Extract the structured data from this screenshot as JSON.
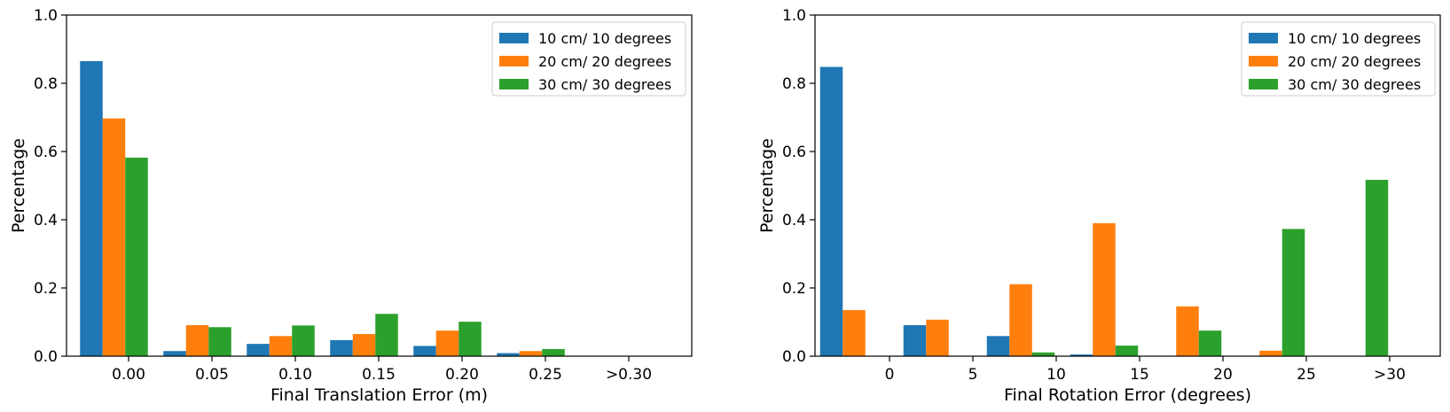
{
  "colors": {
    "series1": "#1f77b4",
    "series2": "#ff7f0e",
    "series3": "#2ca02c"
  },
  "chart_data": [
    {
      "type": "bar",
      "xlabel": "Final Translation Error (m)",
      "ylabel": "Percentage",
      "ylim": [
        0,
        1.0
      ],
      "yticks": [
        "0.0",
        "0.2",
        "0.4",
        "0.6",
        "0.8",
        "1.0"
      ],
      "categories": [
        "0.00",
        "0.05",
        "0.10",
        "0.15",
        "0.20",
        "0.25",
        ">0.30"
      ],
      "legend_position": "top-right",
      "grid": false,
      "series": [
        {
          "name": "10 cm/ 10 degrees",
          "values": [
            0.865,
            0.015,
            0.036,
            0.047,
            0.03,
            0.009,
            0.0
          ]
        },
        {
          "name": "20 cm/ 20 degrees",
          "values": [
            0.697,
            0.091,
            0.059,
            0.065,
            0.075,
            0.015,
            0.0
          ]
        },
        {
          "name": "30 cm/ 30 degrees",
          "values": [
            0.582,
            0.085,
            0.09,
            0.124,
            0.101,
            0.021,
            0.0
          ]
        }
      ]
    },
    {
      "type": "bar",
      "xlabel": "Final Rotation Error (degrees)",
      "ylabel": "Percentage",
      "ylim": [
        0,
        1.0
      ],
      "yticks": [
        "0.0",
        "0.2",
        "0.4",
        "0.6",
        "0.8",
        "1.0"
      ],
      "categories": [
        "0",
        "5",
        "10",
        "15",
        "20",
        "25",
        ">30"
      ],
      "legend_position": "top-right",
      "grid": false,
      "series": [
        {
          "name": "10 cm/ 10 degrees",
          "values": [
            0.848,
            0.091,
            0.059,
            0.005,
            0.0,
            0.0,
            0.0
          ]
        },
        {
          "name": "20 cm/ 20 degrees",
          "values": [
            0.135,
            0.107,
            0.211,
            0.39,
            0.146,
            0.016,
            0.0
          ]
        },
        {
          "name": "30 cm/ 30 degrees",
          "values": [
            0.0,
            0.0,
            0.011,
            0.031,
            0.075,
            0.373,
            0.517
          ]
        }
      ]
    }
  ]
}
